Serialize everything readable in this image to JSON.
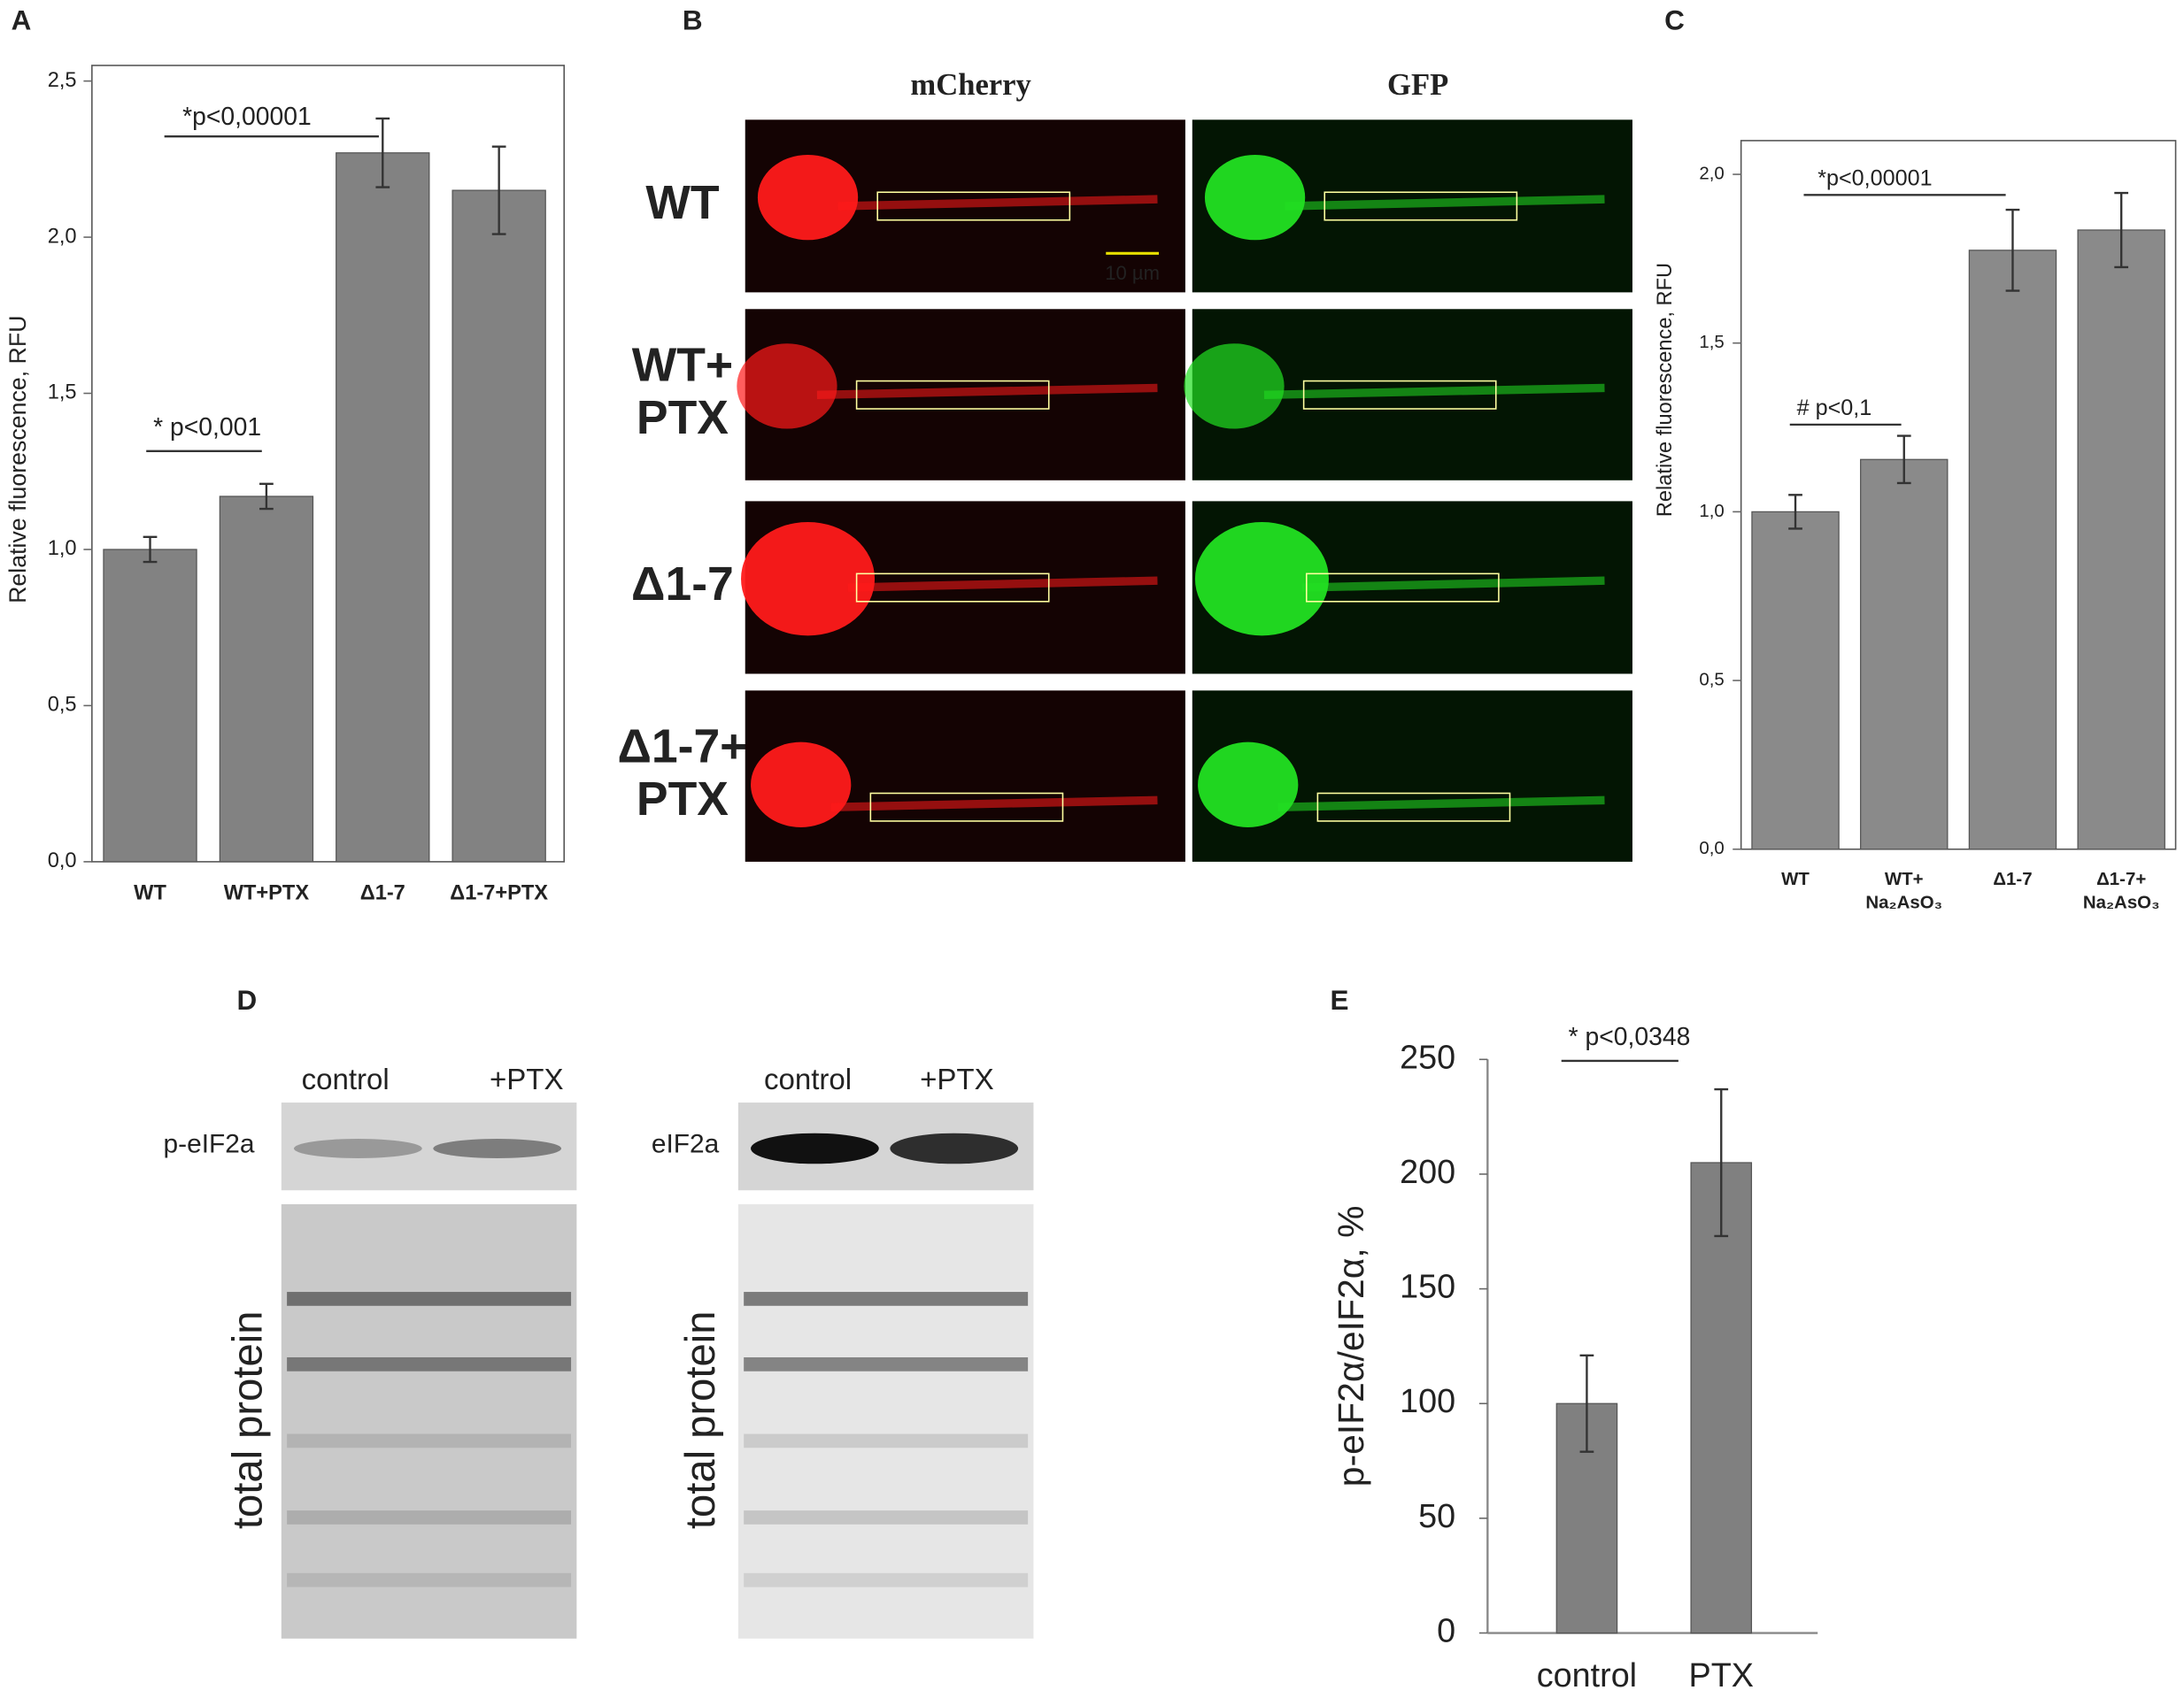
{
  "chart_data": [
    {
      "type": "bar",
      "panel": "A",
      "y_label": "Relative fluorescence, RFU",
      "categories": [
        [
          "WT"
        ],
        [
          "WT+PTX"
        ],
        [
          "Δ1-7"
        ],
        [
          "Δ1-7+PTX"
        ]
      ],
      "values": [
        1.0,
        1.17,
        2.27,
        2.15
      ],
      "errors": [
        0.04,
        0.04,
        0.11,
        0.14
      ],
      "color": "#828282",
      "ylim": [
        0,
        2.55
      ],
      "yticks": [
        {
          "value": 0,
          "label": "0,0"
        },
        {
          "value": 0.5,
          "label": "0,5"
        },
        {
          "value": 1,
          "label": "1,0"
        },
        {
          "value": 1.5,
          "label": "1,5"
        },
        {
          "value": 2,
          "label": "2,0"
        },
        {
          "value": 2.5,
          "label": "2,5"
        }
      ],
      "annotations": [
        "* p<0,001",
        "*p<0,00001"
      ]
    },
    {
      "type": "bar",
      "panel": "C",
      "y_label": "Relative fluorescence, RFU",
      "categories": [
        [
          "WT"
        ],
        [
          "WT+",
          "Na₂AsO₃"
        ],
        [
          "Δ1-7"
        ],
        [
          "Δ1-7+",
          "Na₂AsO₃"
        ]
      ],
      "values": [
        1.0,
        1.155,
        1.775,
        1.835
      ],
      "errors": [
        0.05,
        0.07,
        0.12,
        0.11
      ],
      "color": "#8a8a8a",
      "ylim": [
        0,
        2.1
      ],
      "yticks": [
        {
          "value": 0,
          "label": "0,0"
        },
        {
          "value": 0.5,
          "label": "0,5"
        },
        {
          "value": 1,
          "label": "1,0"
        },
        {
          "value": 1.5,
          "label": "1,5"
        },
        {
          "value": 2,
          "label": "2,0"
        }
      ],
      "annotations": [
        "*p<0,00001",
        "# p<0,1"
      ]
    },
    {
      "type": "bar",
      "panel": "E",
      "y_label": "p-eIF2α/eIF2α, %",
      "categories": [
        [
          "control"
        ],
        [
          "PTX"
        ]
      ],
      "values": [
        100,
        205
      ],
      "errors": [
        21,
        32
      ],
      "color": "#808080",
      "ylim": [
        0,
        250
      ],
      "yticks": [
        0,
        50,
        100,
        150,
        200,
        250
      ],
      "annotations": [
        "* p<0,0348"
      ]
    }
  ],
  "panel_b": {
    "letter": "B",
    "columns": [
      "mCherry",
      "GFP"
    ],
    "rows": [
      [
        "WT"
      ],
      [
        "WT+",
        "PTX"
      ],
      [
        "Δ1-7"
      ],
      [
        "Δ1-7+",
        "PTX"
      ]
    ],
    "scale_bar": "10 µm"
  },
  "panel_d": {
    "letter": "D",
    "blots": [
      {
        "lanes": [
          "control",
          "+PTX"
        ],
        "target": "p-eIF2a",
        "loading": "total protein"
      },
      {
        "lanes": [
          "control",
          "+PTX"
        ],
        "target": "eIF2a",
        "loading": "total protein"
      }
    ]
  }
}
